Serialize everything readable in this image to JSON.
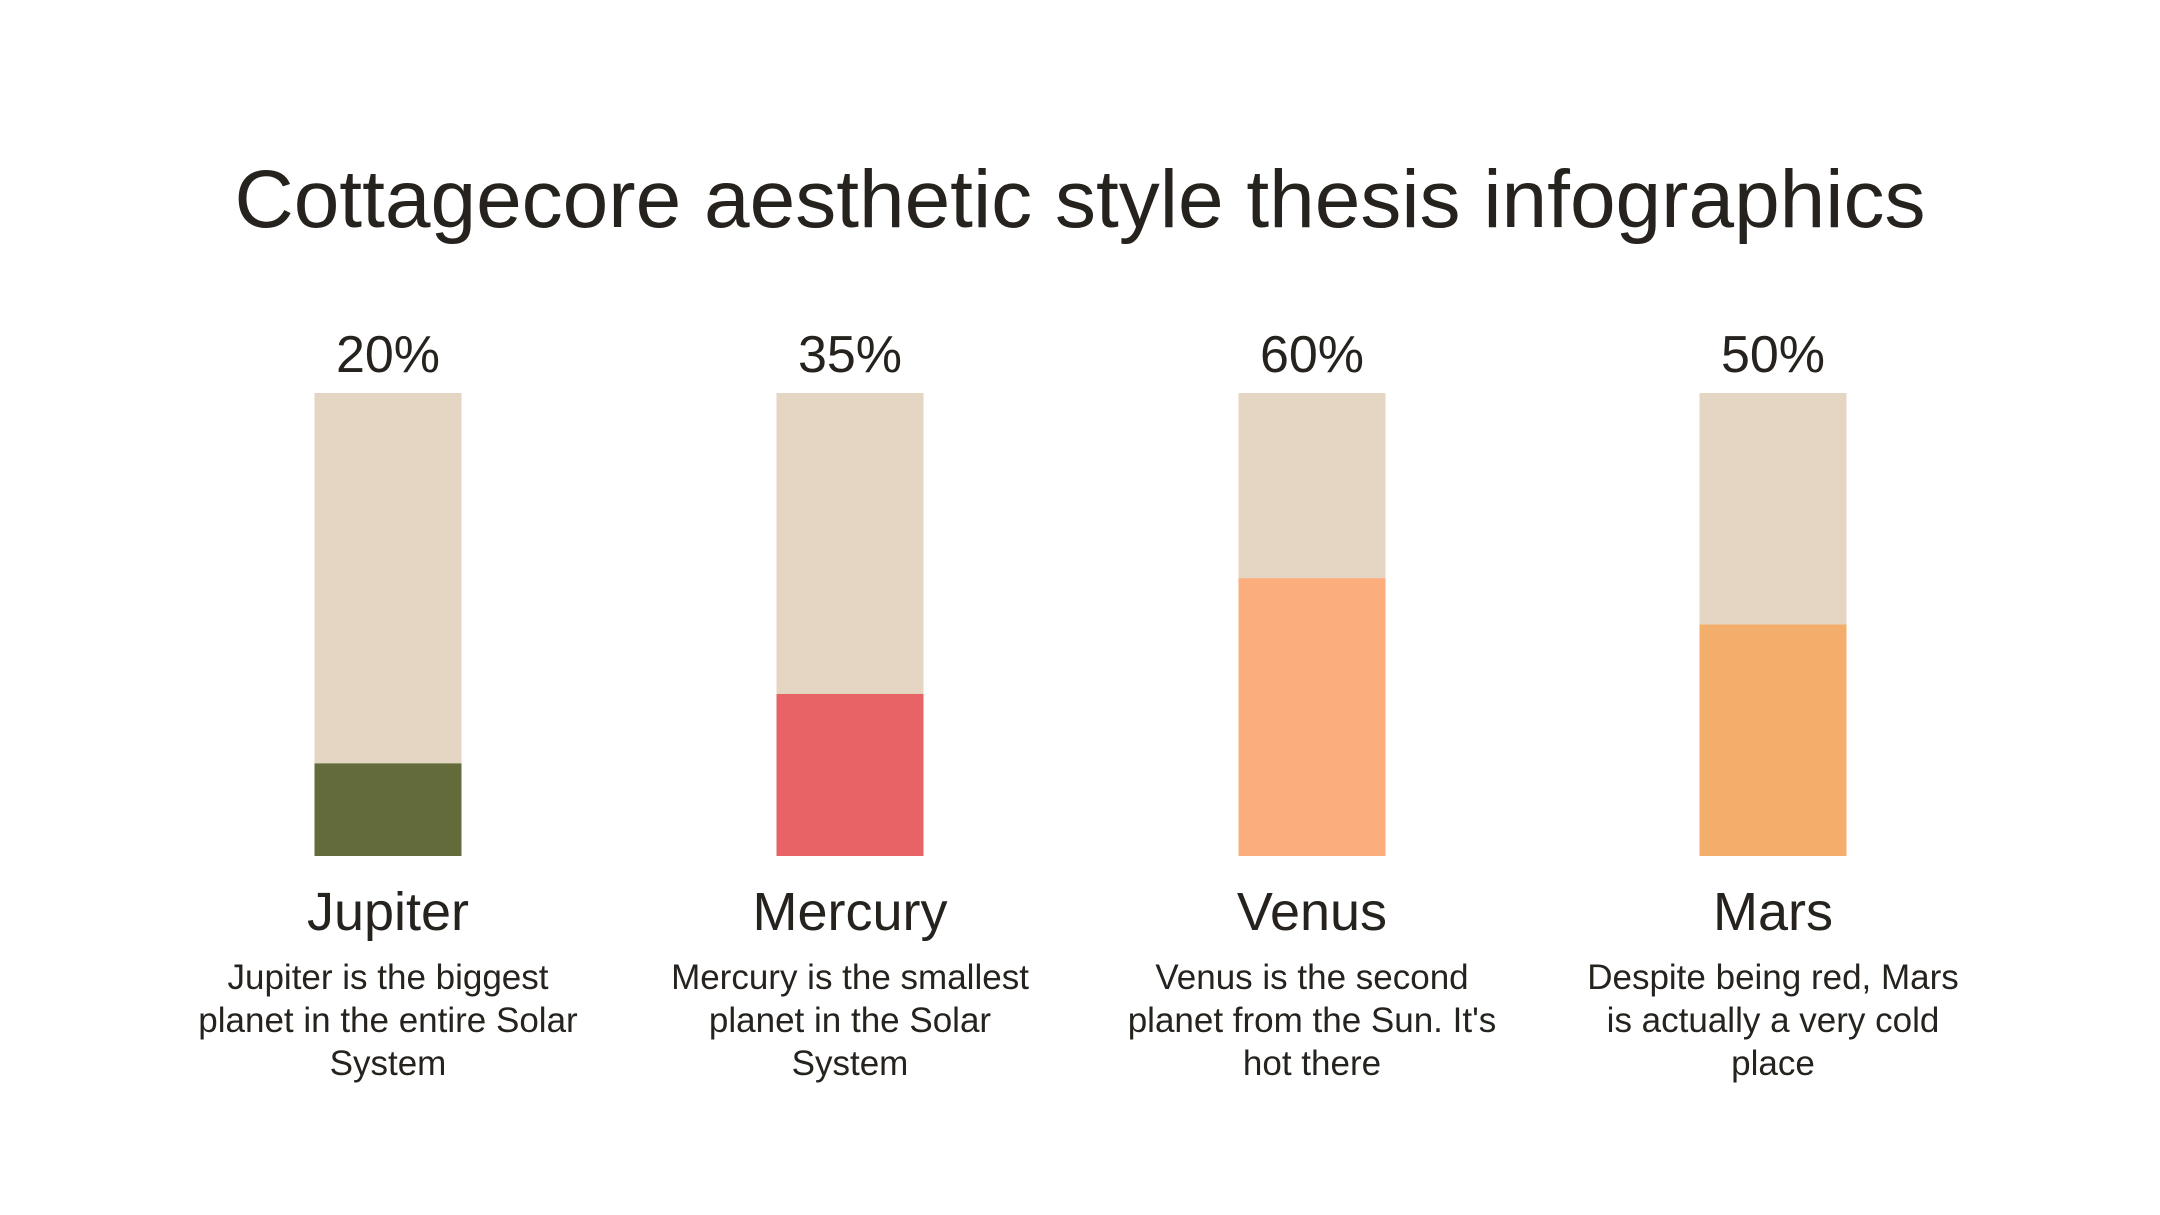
{
  "chart_data": {
    "type": "bar",
    "title": "Cottagecore aesthetic style thesis infographics",
    "categories": [
      "Jupiter",
      "Mercury",
      "Venus",
      "Mars"
    ],
    "values": [
      20,
      35,
      60,
      50
    ],
    "value_labels": [
      "20%",
      "35%",
      "60%",
      "50%"
    ],
    "descriptions": [
      "Jupiter is the biggest planet in the entire Solar System",
      "Mercury is the smallest planet in the Solar System",
      "Venus is the second planet from the Sun. It's hot there",
      "Despite being red, Mars is actually a very cold place"
    ],
    "colors": [
      "#636b3b",
      "#e86365",
      "#fbad7e",
      "#f3ae6b"
    ],
    "track_color": "#e4d6c3",
    "ylim": [
      0,
      100
    ]
  }
}
